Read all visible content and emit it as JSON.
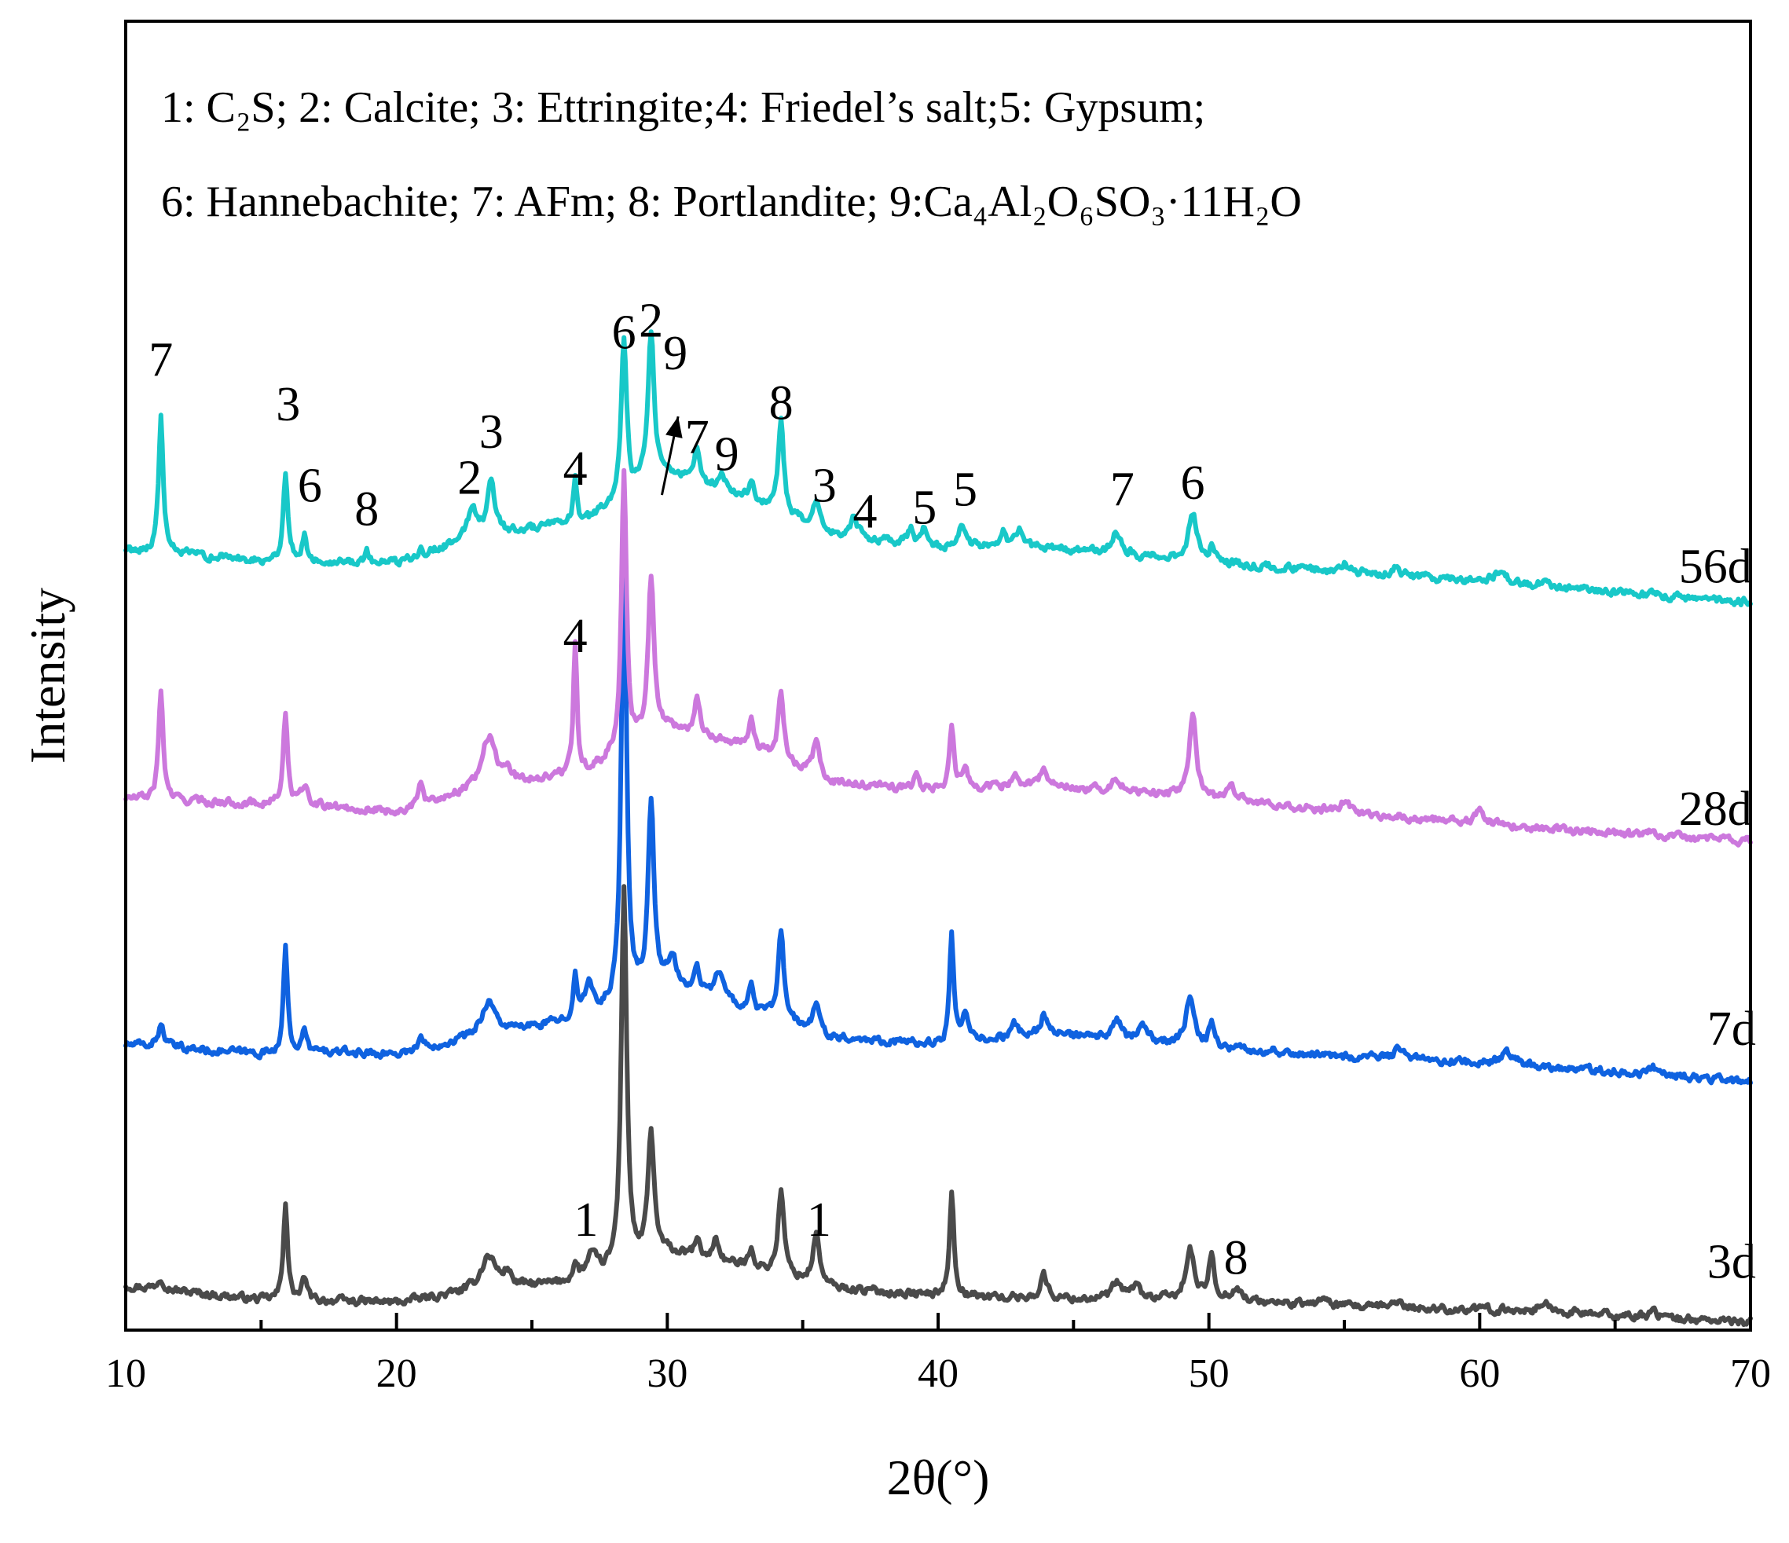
{
  "chart_data": {
    "type": "line",
    "title": "",
    "xlabel": "2θ(°)",
    "ylabel": "Intensity",
    "xlim": [
      10,
      70
    ],
    "x_ticks": [
      10,
      20,
      30,
      40,
      50,
      60,
      70
    ],
    "x_tick_labels": [
      "10",
      "20",
      "30",
      "40",
      "50",
      "60",
      "70"
    ],
    "ylim": [
      0,
      100
    ],
    "legend": {
      "placement": "top",
      "line1": "1: C₂S; 2: Calcite; 3: Ettringite;4: Friedel’s salt;5: Gypsum;",
      "line2": "6: Hannebachite; 7: AFm; 8: Portlandite; 9:Ca₄Al₂O₆SO₃·11H₂O"
    },
    "colors": {
      "3d": "#4a4a4a",
      "7d": "#0f62e0",
      "28d": "#cc78dd",
      "56d": "#18c8c8"
    },
    "series": [
      {
        "name": "3d",
        "baseline": [
          [
            10,
            3.4
          ],
          [
            15,
            2.3
          ],
          [
            16,
            2.3
          ],
          [
            20,
            2.1
          ],
          [
            24,
            3.2
          ],
          [
            27,
            3.6
          ],
          [
            30,
            5.8
          ],
          [
            33,
            4.8
          ],
          [
            36,
            3.2
          ],
          [
            40,
            2.6
          ],
          [
            44,
            2.4
          ],
          [
            50,
            2.3
          ],
          [
            56,
            1.7
          ],
          [
            62,
            1.5
          ],
          [
            66,
            1.0
          ],
          [
            70,
            0.6
          ]
        ],
        "peaks": [
          [
            11.3,
            0.9,
            0.15
          ],
          [
            15.9,
            7.6,
            0.09
          ],
          [
            16.6,
            1.7,
            0.1
          ],
          [
            23.4,
            2.6,
            0.35
          ],
          [
            24.1,
            1.0,
            0.15
          ],
          [
            26.6,
            1.2,
            0.12
          ],
          [
            27.2,
            1.8,
            0.25
          ],
          [
            28.4,
            29.2,
            0.12
          ],
          [
            29.4,
            9.4,
            0.14
          ],
          [
            31.1,
            1.2,
            0.15
          ],
          [
            31.8,
            1.8,
            0.12
          ],
          [
            33.1,
            1.6,
            0.1
          ],
          [
            34.2,
            6.5,
            0.13
          ],
          [
            35.5,
            3.8,
            0.15
          ],
          [
            40.5,
            7.9,
            0.1
          ],
          [
            43.9,
            1.8,
            0.15
          ],
          [
            46.6,
            1.2,
            0.2
          ],
          [
            47.3,
            1.0,
            0.2
          ],
          [
            49.3,
            3.8,
            0.18
          ],
          [
            50.1,
            3.5,
            0.12
          ],
          [
            51.0,
            1.0,
            0.2
          ],
          [
            54.2,
            0.7,
            0.15
          ],
          [
            56.9,
            0.6,
            0.2
          ],
          [
            62.4,
            0.6,
            0.2
          ],
          [
            66.4,
            1.0,
            0.1
          ]
        ]
      },
      {
        "name": "7d",
        "baseline": [
          [
            10,
            21.8
          ],
          [
            15,
            21.1
          ],
          [
            16,
            21.3
          ],
          [
            20,
            21.1
          ],
          [
            23,
            22.4
          ],
          [
            27,
            23.8
          ],
          [
            30,
            26.4
          ],
          [
            33,
            24.4
          ],
          [
            36,
            22.4
          ],
          [
            40,
            21.8
          ],
          [
            44,
            22.6
          ],
          [
            50,
            21.6
          ],
          [
            56,
            20.8
          ],
          [
            62,
            20.2
          ],
          [
            66,
            19.6
          ],
          [
            70,
            19.0
          ]
        ],
        "peaks": [
          [
            11.3,
            1.6,
            0.15
          ],
          [
            15.9,
            7.8,
            0.09
          ],
          [
            16.6,
            1.5,
            0.1
          ],
          [
            20.9,
            1.0,
            0.08
          ],
          [
            23.4,
            2.6,
            0.3
          ],
          [
            26.6,
            3.6,
            0.09
          ],
          [
            27.1,
            2.6,
            0.15
          ],
          [
            28.4,
            36.0,
            0.11
          ],
          [
            29.4,
            14.2,
            0.13
          ],
          [
            30.2,
            2.0,
            0.15
          ],
          [
            31.1,
            1.8,
            0.12
          ],
          [
            31.9,
            2.2,
            0.2
          ],
          [
            33.1,
            2.0,
            0.1
          ],
          [
            34.2,
            6.6,
            0.13
          ],
          [
            35.5,
            2.0,
            0.15
          ],
          [
            40.5,
            8.0,
            0.09
          ],
          [
            41.0,
            1.8,
            0.15
          ],
          [
            42.8,
            1.0,
            0.15
          ],
          [
            43.9,
            1.5,
            0.15
          ],
          [
            46.6,
            1.4,
            0.2
          ],
          [
            47.6,
            1.2,
            0.2
          ],
          [
            49.3,
            3.6,
            0.18
          ],
          [
            50.1,
            2.0,
            0.12
          ],
          [
            57.0,
            0.8,
            0.2
          ],
          [
            61.0,
            0.8,
            0.3
          ],
          [
            66.4,
            0.8,
            0.1
          ]
        ]
      },
      {
        "name": "28d",
        "baseline": [
          [
            10,
            40.6
          ],
          [
            15,
            40.2
          ],
          [
            16,
            40.2
          ],
          [
            20,
            39.6
          ],
          [
            23,
            41.4
          ],
          [
            27,
            42.6
          ],
          [
            30,
            46.0
          ],
          [
            33,
            44.6
          ],
          [
            36,
            41.8
          ],
          [
            40,
            41.2
          ],
          [
            44,
            41.6
          ],
          [
            50,
            40.6
          ],
          [
            56,
            39.4
          ],
          [
            62,
            38.4
          ],
          [
            66,
            37.8
          ],
          [
            70,
            37.4
          ]
        ],
        "peaks": [
          [
            11.3,
            8.4,
            0.1
          ],
          [
            15.9,
            6.6,
            0.1
          ],
          [
            16.6,
            1.5,
            0.12
          ],
          [
            20.9,
            1.6,
            0.08
          ],
          [
            23.4,
            3.8,
            0.3
          ],
          [
            24.1,
            1.0,
            0.15
          ],
          [
            26.6,
            10.2,
            0.08
          ],
          [
            28.4,
            21.4,
            0.11
          ],
          [
            29.4,
            12.0,
            0.13
          ],
          [
            31.1,
            2.8,
            0.12
          ],
          [
            33.1,
            2.0,
            0.1
          ],
          [
            34.2,
            5.0,
            0.13
          ],
          [
            35.5,
            2.6,
            0.15
          ],
          [
            39.2,
            1.0,
            0.12
          ],
          [
            40.5,
            4.6,
            0.1
          ],
          [
            41.0,
            1.5,
            0.15
          ],
          [
            42.8,
            1.0,
            0.15
          ],
          [
            43.9,
            1.5,
            0.15
          ],
          [
            46.6,
            1.0,
            0.2
          ],
          [
            49.4,
            6.6,
            0.15
          ],
          [
            50.8,
            1.4,
            0.15
          ],
          [
            55.0,
            0.8,
            0.2
          ],
          [
            60.0,
            1.0,
            0.15
          ],
          [
            66.4,
            0.8,
            0.1
          ]
        ]
      },
      {
        "name": "56d",
        "baseline": [
          [
            10,
            59.6
          ],
          [
            15,
            58.8
          ],
          [
            16,
            58.8
          ],
          [
            20,
            58.6
          ],
          [
            23,
            60.6
          ],
          [
            27,
            61.8
          ],
          [
            30,
            65.4
          ],
          [
            33,
            63.4
          ],
          [
            36,
            60.8
          ],
          [
            40,
            59.8
          ],
          [
            44,
            59.8
          ],
          [
            50,
            58.6
          ],
          [
            56,
            57.8
          ],
          [
            62,
            56.9
          ],
          [
            66,
            56.2
          ],
          [
            70,
            55.6
          ]
        ],
        "peaks": [
          [
            11.3,
            10.4,
            0.1
          ],
          [
            15.9,
            6.6,
            0.1
          ],
          [
            16.6,
            1.9,
            0.1
          ],
          [
            18.9,
            0.8,
            0.1
          ],
          [
            20.9,
            0.9,
            0.08
          ],
          [
            22.8,
            2.4,
            0.2
          ],
          [
            23.5,
            4.2,
            0.16
          ],
          [
            26.6,
            3.4,
            0.08
          ],
          [
            28.4,
            12.2,
            0.12
          ],
          [
            29.4,
            11.6,
            0.14
          ],
          [
            31.1,
            2.6,
            0.12
          ],
          [
            32.0,
            1.4,
            0.15
          ],
          [
            33.1,
            1.8,
            0.1
          ],
          [
            34.2,
            7.0,
            0.12
          ],
          [
            35.5,
            1.8,
            0.15
          ],
          [
            36.9,
            1.5,
            0.15
          ],
          [
            39.0,
            1.3,
            0.12
          ],
          [
            39.5,
            1.3,
            0.12
          ],
          [
            40.9,
            1.8,
            0.15
          ],
          [
            42.4,
            1.2,
            0.15
          ],
          [
            43.0,
            1.3,
            0.15
          ],
          [
            46.6,
            1.7,
            0.2
          ],
          [
            49.4,
            3.8,
            0.18
          ],
          [
            50.1,
            1.2,
            0.12
          ],
          [
            55.0,
            0.6,
            0.2
          ],
          [
            56.9,
            0.6,
            0.2
          ],
          [
            60.7,
            0.8,
            0.3
          ],
          [
            62.4,
            0.6,
            0.15
          ]
        ]
      }
    ],
    "series_labels": [
      {
        "name": "3d",
        "text": "3d",
        "x": 69.3,
        "y": 4.0
      },
      {
        "name": "7d",
        "text": "7d",
        "x": 69.3,
        "y": 21.8
      },
      {
        "name": "28d",
        "text": "28d",
        "x": 68.7,
        "y": 38.6
      },
      {
        "name": "56d",
        "text": "56d",
        "x": 68.7,
        "y": 57.1
      }
    ],
    "peak_labels": [
      {
        "text": "1",
        "x": 27.0,
        "y": 7.2
      },
      {
        "text": "1",
        "x": 35.6,
        "y": 7.2
      },
      {
        "text": "8",
        "x": 51.0,
        "y": 4.3
      },
      {
        "text": "4",
        "x": 26.6,
        "y": 51.8
      },
      {
        "text": "7",
        "x": 11.3,
        "y": 72.9
      },
      {
        "text": "3",
        "x": 16.0,
        "y": 69.5
      },
      {
        "text": "6",
        "x": 16.8,
        "y": 63.3
      },
      {
        "text": "8",
        "x": 18.9,
        "y": 61.5
      },
      {
        "text": "2",
        "x": 22.7,
        "y": 63.9
      },
      {
        "text": "3",
        "x": 23.5,
        "y": 67.4
      },
      {
        "text": "4",
        "x": 26.6,
        "y": 64.6
      },
      {
        "text": "6",
        "x": 28.4,
        "y": 75.0
      },
      {
        "text": "2",
        "x": 29.4,
        "y": 75.9
      },
      {
        "text": "9",
        "x": 30.3,
        "y": 73.4
      },
      {
        "text": "7",
        "x": 31.1,
        "y": 67.0
      },
      {
        "text": "9",
        "x": 32.2,
        "y": 65.7
      },
      {
        "text": "8",
        "x": 34.2,
        "y": 69.6
      },
      {
        "text": "3",
        "x": 35.8,
        "y": 63.3
      },
      {
        "text": "4",
        "x": 37.3,
        "y": 61.3
      },
      {
        "text": "5",
        "x": 39.5,
        "y": 61.6
      },
      {
        "text": "5",
        "x": 41.0,
        "y": 63.0
      },
      {
        "text": "7",
        "x": 46.8,
        "y": 63.0
      },
      {
        "text": "6",
        "x": 49.4,
        "y": 63.5
      }
    ],
    "annotation_arrow": {
      "from": [
        29.8,
        63.8
      ],
      "to": [
        30.4,
        69.8
      ]
    }
  }
}
